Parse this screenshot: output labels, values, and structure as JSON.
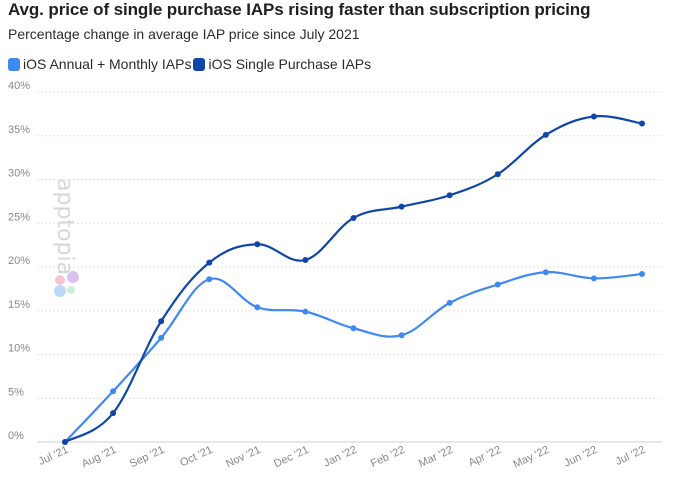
{
  "chart_data": {
    "type": "line",
    "title": "Avg. price of single purchase IAPs rising faster than subscription pricing",
    "subtitle": "Percentage change in average IAP price since July 2021",
    "categories": [
      "Jul '21",
      "Aug '21",
      "Sep '21",
      "Oct '21",
      "Nov '21",
      "Dec '21",
      "Jan '22",
      "Feb '22",
      "Mar '22",
      "Apr '22",
      "May '22",
      "Jun '22",
      "Jul '22"
    ],
    "yticks": [
      "0%",
      "5%",
      "10%",
      "15%",
      "20%",
      "25%",
      "30%",
      "35%",
      "40%"
    ],
    "ylim": [
      0,
      40
    ],
    "grid": "horizontal-dashed",
    "legend_position": "top-left",
    "series": [
      {
        "name": "iOS Annual + Monthly IAPs",
        "color": "#4088f2",
        "values": [
          0,
          5.8,
          11.9,
          18.6,
          15.4,
          14.9,
          13.0,
          12.2,
          15.9,
          18.0,
          19.4,
          18.7,
          19.2
        ]
      },
      {
        "name": "iOS Single Purchase IAPs",
        "color": "#0f46a8",
        "values": [
          0,
          3.3,
          13.8,
          20.5,
          22.6,
          20.8,
          25.6,
          26.9,
          28.2,
          30.6,
          35.1,
          37.2,
          36.4
        ]
      }
    ]
  },
  "watermark": {
    "text": "apptopia",
    "petal_colors": [
      "#f9c4d2",
      "#d9c2f0",
      "#bcd9f7",
      "#c8efd9"
    ]
  }
}
